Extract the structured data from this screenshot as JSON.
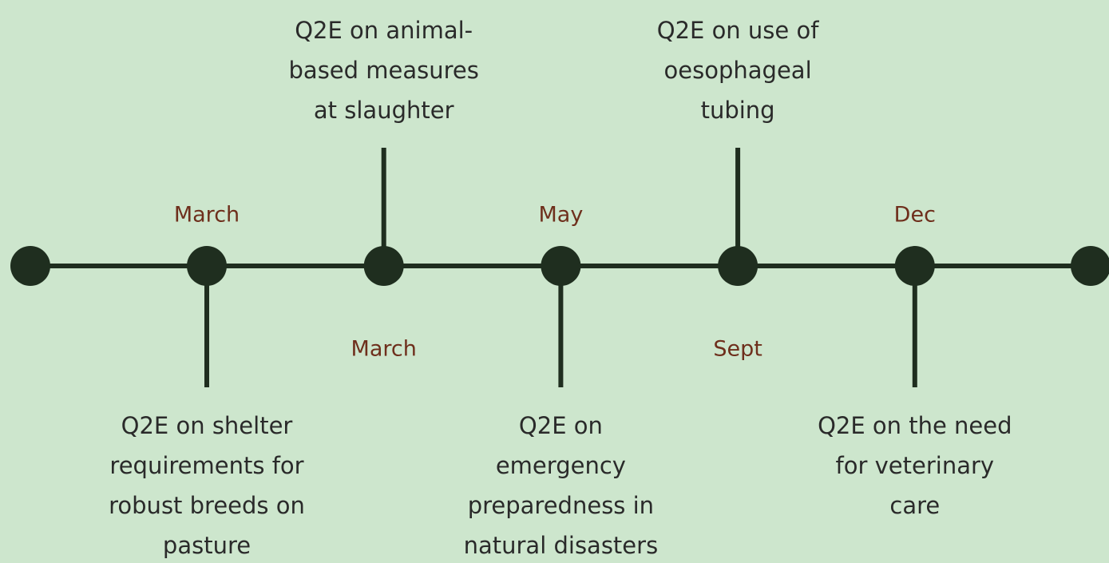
{
  "events": [
    {
      "month": "March",
      "label": [
        "Q2E on shelter",
        "requirements for",
        "robust breeds on",
        "pasture"
      ]
    },
    {
      "month": "March",
      "label": [
        "Q2E on animal-",
        "based measures",
        "at slaughter"
      ]
    },
    {
      "month": "May",
      "label": [
        "Q2E on",
        "emergency",
        "preparedness in",
        "natural disasters"
      ]
    },
    {
      "month": "Sept",
      "label": [
        "Q2E on use of",
        "oesophageal",
        "tubing"
      ]
    },
    {
      "month": "Dec",
      "label": [
        "Q2E on the need",
        "for veterinary",
        "care"
      ]
    }
  ]
}
